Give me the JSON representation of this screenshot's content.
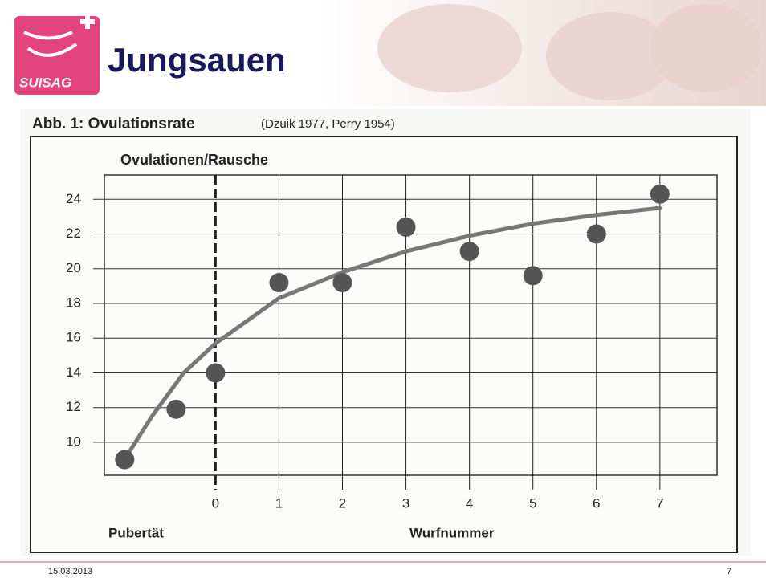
{
  "slide": {
    "title": "Jungsauen",
    "logo": "SUISAG",
    "date": "15.03.2013",
    "page": "7"
  },
  "chart_data": {
    "type": "scatter",
    "title": "Abb. 1: Ovulationsrate",
    "subtitle": "(Dzuik 1977, Perry 1954)",
    "y_label": "Ovulationen/Rausche",
    "x_label": "Wurfnummer",
    "annotation": "Pubertät",
    "series": [
      {
        "color": "#555555",
        "x": [
          -1.43,
          -0.62,
          0,
          1,
          2,
          3,
          4,
          5,
          6,
          7
        ],
        "values": [
          9.0,
          11.9,
          14.0,
          19.2,
          19.2,
          22.4,
          21.0,
          19.6,
          22.0,
          24.3
        ]
      }
    ],
    "trend": {
      "color": "#777777",
      "x": [
        -1.4,
        -1,
        -0.5,
        0,
        1,
        2,
        3,
        4,
        5,
        6,
        7
      ],
      "values": [
        9.2,
        11.5,
        14,
        15.7,
        18.3,
        19.8,
        21,
        21.9,
        22.6,
        23.1,
        23.5
      ]
    },
    "xlim": [
      -1.75,
      7.9
    ],
    "xticks": [
      0,
      1,
      2,
      3,
      4,
      5,
      6,
      7
    ],
    "ylim": [
      8.1,
      25.4
    ],
    "yticks": [
      10,
      12,
      14,
      16,
      18,
      20,
      22,
      24
    ],
    "grid": true
  }
}
